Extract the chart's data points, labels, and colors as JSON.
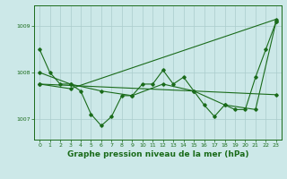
{
  "bg_color": "#cce8e8",
  "grid_color": "#aacccc",
  "line_color": "#1a6b1a",
  "marker_color": "#1a6b1a",
  "xlabel": "Graphe pression niveau de la mer (hPa)",
  "xlabel_fontsize": 6.5,
  "ylim": [
    1006.55,
    1009.45
  ],
  "xlim": [
    -0.5,
    23.5
  ],
  "yticks": [
    1007,
    1008,
    1009
  ],
  "ytick_labels": [
    "1007",
    "1008",
    "1009"
  ],
  "xticks": [
    0,
    1,
    2,
    3,
    4,
    5,
    6,
    7,
    8,
    9,
    10,
    11,
    12,
    13,
    14,
    15,
    16,
    17,
    18,
    19,
    20,
    21,
    22,
    23
  ],
  "series1": {
    "x": [
      0,
      1,
      2,
      3,
      4,
      5,
      6,
      7,
      8,
      9,
      10,
      11,
      12,
      13,
      14,
      15,
      16,
      17,
      18,
      19,
      20,
      21,
      22,
      23
    ],
    "y": [
      1008.5,
      1008.0,
      1007.75,
      1007.75,
      1007.6,
      1007.1,
      1006.85,
      1007.05,
      1007.5,
      1007.5,
      1007.75,
      1007.75,
      1008.05,
      1007.75,
      1007.9,
      1007.6,
      1007.3,
      1007.05,
      1007.3,
      1007.2,
      1007.2,
      1007.9,
      1008.5,
      1009.1
    ]
  },
  "series2": {
    "x": [
      0,
      3,
      6,
      9,
      12,
      15,
      18,
      21,
      23
    ],
    "y": [
      1008.0,
      1007.75,
      1007.6,
      1007.5,
      1007.75,
      1007.6,
      1007.3,
      1007.2,
      1009.1
    ]
  },
  "series3": {
    "x": [
      0,
      3,
      23
    ],
    "y": [
      1007.75,
      1007.65,
      1009.15
    ]
  },
  "series4": {
    "x": [
      0,
      23
    ],
    "y": [
      1007.75,
      1007.52
    ]
  }
}
